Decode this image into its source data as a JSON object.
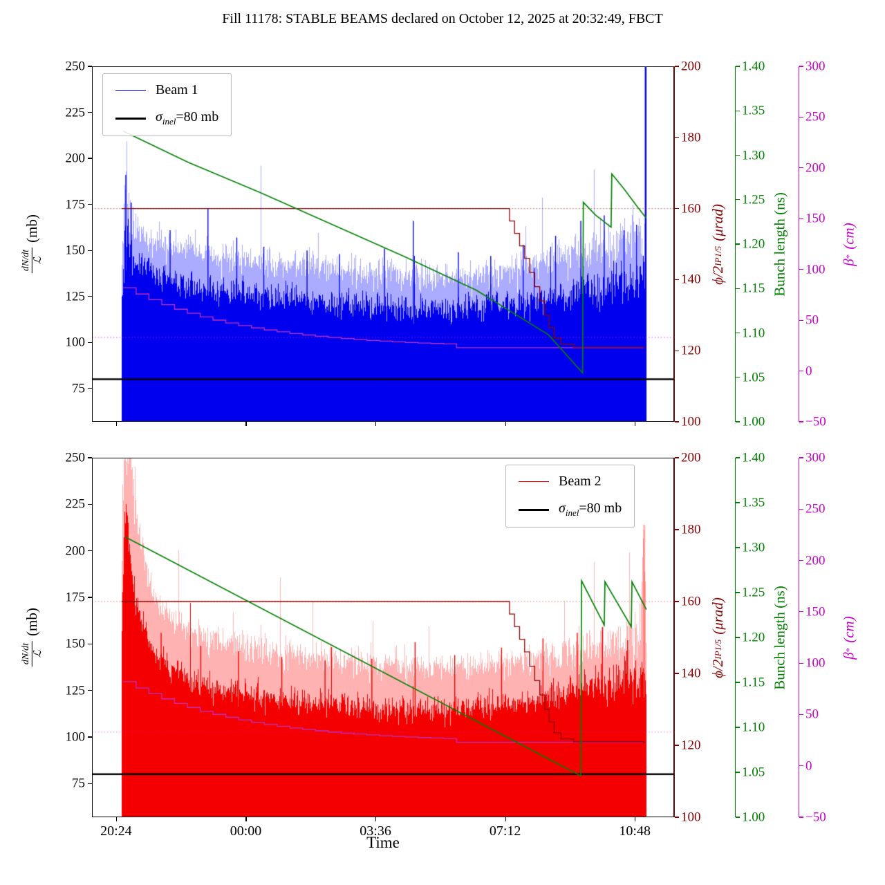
{
  "title": "Fill 11178: STABLE BEAMS declared on October 12, 2025 at 20:32:49, FBCT",
  "legend": {
    "beam1": "Beam 1",
    "beam2": "Beam 2",
    "sigma_prefix": "σ",
    "sigma_sub": "inel",
    "sigma_rest": "=80 mb"
  },
  "axes": {
    "x": {
      "label": "Time",
      "tick_labels": [
        "20:24",
        "00:00",
        "03:36",
        "07:12",
        "10:48"
      ],
      "tick_hours": [
        0,
        3.6,
        7.2,
        10.8,
        14.4
      ],
      "range_hours": [
        -0.67,
        15.49
      ]
    },
    "left": {
      "label_num": "dN/dt",
      "label_den": "ℒ",
      "label_unit": "(mb)",
      "tick_labels": [
        "75",
        "100",
        "125",
        "150",
        "175",
        "200",
        "225",
        "250"
      ],
      "tick_values": [
        75,
        100,
        125,
        150,
        175,
        200,
        225,
        250
      ],
      "range": [
        56.9,
        250
      ],
      "color": "#000000"
    },
    "phi": {
      "label_main": "ϕ/2",
      "label_sub": "IP1/5",
      "label_unit": "(μrad)",
      "tick_labels": [
        "100",
        "120",
        "140",
        "160",
        "180",
        "200"
      ],
      "tick_values": [
        100,
        120,
        140,
        160,
        180,
        200
      ],
      "range": [
        100,
        200
      ],
      "color": "#8b0000"
    },
    "bunch": {
      "label": "Bunch length (ns)",
      "tick_labels": [
        "1.00",
        "1.05",
        "1.10",
        "1.15",
        "1.20",
        "1.25",
        "1.30",
        "1.35",
        "1.40"
      ],
      "tick_values": [
        1.0,
        1.05,
        1.1,
        1.15,
        1.2,
        1.25,
        1.3,
        1.35,
        1.4
      ],
      "range": [
        1.0,
        1.4
      ],
      "color": "#008000"
    },
    "beta": {
      "label_main": "β",
      "label_sup": "*",
      "label_unit": "(cm)",
      "tick_labels": [
        "−50",
        "0",
        "50",
        "100",
        "150",
        "200",
        "250",
        "300"
      ],
      "tick_values": [
        -50,
        0,
        50,
        100,
        150,
        200,
        250,
        300
      ],
      "range": [
        -50,
        300
      ],
      "color": "#cc00cc"
    }
  },
  "chart_data": {
    "type": "line",
    "title": "Fill 11178: STABLE BEAMS declared on October 12, 2025 at 20:32:49, FBCT",
    "x_unit": "hours since 20:24",
    "subplots": [
      {
        "name": "Beam 1",
        "beam_color": "#0000ee",
        "beam_light_color": "rgba(0,0,255,0.33)",
        "seed": 11178,
        "data_t_range": [
          0.15,
          14.72
        ],
        "noise": {
          "light_amp": 10,
          "dark_amp": 9,
          "spike_prob": 0.012,
          "spike_max": 38
        },
        "envelope_light": [
          [
            0.15,
            128
          ],
          [
            0.22,
            165
          ],
          [
            0.3,
            193
          ],
          [
            0.38,
            170
          ],
          [
            0.5,
            163
          ],
          [
            0.8,
            158
          ],
          [
            1.2,
            155
          ],
          [
            2,
            151
          ],
          [
            3,
            147
          ],
          [
            4,
            144
          ],
          [
            5,
            142
          ],
          [
            6,
            140
          ],
          [
            7,
            138
          ],
          [
            8,
            137
          ],
          [
            9,
            136
          ],
          [
            10,
            137
          ],
          [
            11,
            139
          ],
          [
            12,
            144
          ],
          [
            13,
            151
          ],
          [
            13.8,
            155
          ],
          [
            14.4,
            158
          ],
          [
            14.72,
            150
          ]
        ],
        "envelope_dark": [
          [
            0.15,
            110
          ],
          [
            0.22,
            140
          ],
          [
            0.3,
            158
          ],
          [
            0.4,
            150
          ],
          [
            0.6,
            143
          ],
          [
            1,
            138
          ],
          [
            2,
            131
          ],
          [
            3,
            127
          ],
          [
            4,
            125
          ],
          [
            5,
            123
          ],
          [
            6,
            121
          ],
          [
            7,
            120
          ],
          [
            8,
            119
          ],
          [
            9,
            118
          ],
          [
            10,
            119
          ],
          [
            11,
            121
          ],
          [
            12,
            124
          ],
          [
            13,
            128
          ],
          [
            14,
            132
          ],
          [
            14.72,
            133
          ]
        ],
        "spikes_dark": [
          [
            0.27,
            191
          ],
          [
            0.42,
            176
          ],
          [
            1.5,
            161
          ],
          [
            2.55,
            173
          ],
          [
            3.35,
            157
          ],
          [
            4.1,
            152
          ],
          [
            5.3,
            150
          ],
          [
            6.2,
            148
          ],
          [
            7.45,
            151
          ],
          [
            8.25,
            166
          ],
          [
            9.5,
            149
          ],
          [
            10.4,
            147
          ],
          [
            11.3,
            153
          ],
          [
            12.2,
            158
          ],
          [
            12.9,
            166
          ],
          [
            13.55,
            169
          ],
          [
            14.1,
            161
          ],
          [
            14.45,
            164
          ]
        ],
        "end_spike": {
          "t": 14.7,
          "v": 250,
          "layer": "dark",
          "w": 2.5
        },
        "sigma_inel_mb": 80,
        "crossing_angle_urad": {
          "ref_dotted": 160,
          "steps": [
            [
              0.15,
              160
            ],
            [
              10.78,
              160
            ],
            [
              10.92,
              156.5
            ],
            [
              11.06,
              153
            ],
            [
              11.2,
              149.5
            ],
            [
              11.34,
              146
            ],
            [
              11.48,
              142
            ],
            [
              11.62,
              138
            ],
            [
              11.76,
              134
            ],
            [
              11.9,
              130
            ],
            [
              12.02,
              126.5
            ],
            [
              12.16,
              123.5
            ],
            [
              12.35,
              121.8
            ],
            [
              12.7,
              121
            ],
            [
              14.65,
              120.6
            ]
          ]
        },
        "bunch_length_ns": {
          "points": [
            [
              0.2,
              1.327
            ],
            [
              2,
              1.292
            ],
            [
              4,
              1.258
            ],
            [
              6,
              1.222
            ],
            [
              8,
              1.186
            ],
            [
              10,
              1.148
            ],
            [
              12,
              1.098
            ],
            [
              12.95,
              1.055
            ],
            [
              12.97,
              1.247
            ],
            [
              13.3,
              1.233
            ],
            [
              13.74,
              1.219
            ],
            [
              13.76,
              1.279
            ],
            [
              14.1,
              1.262
            ],
            [
              14.45,
              1.243
            ],
            [
              14.72,
              1.229
            ]
          ]
        },
        "beta_star_cm": {
          "ref_dotted": 33,
          "step_spec": {
            "t0": 0.2,
            "t_flat": 9.45,
            "t_end": 14.65,
            "v0": 82,
            "v_flat": 23,
            "n_steps": 26,
            "decay": 9
          }
        }
      },
      {
        "name": "Beam 2",
        "beam_color": "#f40000",
        "beam_light_color": "rgba(255,0,0,0.30)",
        "seed": 21178,
        "data_t_range": [
          0.15,
          14.72
        ],
        "noise": {
          "light_amp": 10,
          "dark_amp": 9,
          "spike_prob": 0.012,
          "spike_max": 36
        },
        "envelope_light": [
          [
            0.15,
            170
          ],
          [
            0.2,
            245
          ],
          [
            0.28,
            253
          ],
          [
            0.4,
            251
          ],
          [
            0.55,
            225
          ],
          [
            0.7,
            205
          ],
          [
            0.9,
            185
          ],
          [
            1.1,
            172
          ],
          [
            1.5,
            163
          ],
          [
            2,
            157
          ],
          [
            3,
            151
          ],
          [
            4,
            147
          ],
          [
            5,
            144
          ],
          [
            6,
            142
          ],
          [
            7,
            140
          ],
          [
            8,
            138
          ],
          [
            9,
            137
          ],
          [
            10,
            138
          ],
          [
            11,
            140
          ],
          [
            12,
            143
          ],
          [
            13,
            148
          ],
          [
            14,
            152
          ],
          [
            14.55,
            158
          ],
          [
            14.65,
            213
          ],
          [
            14.72,
            150
          ]
        ],
        "envelope_dark": [
          [
            0.15,
            135
          ],
          [
            0.22,
            213
          ],
          [
            0.3,
            216
          ],
          [
            0.4,
            196
          ],
          [
            0.55,
            175
          ],
          [
            0.75,
            158
          ],
          [
            1,
            147
          ],
          [
            1.5,
            138
          ],
          [
            2,
            131
          ],
          [
            3,
            126
          ],
          [
            4,
            122
          ],
          [
            5,
            120
          ],
          [
            6,
            118
          ],
          [
            7,
            116
          ],
          [
            8,
            115
          ],
          [
            9,
            115
          ],
          [
            10,
            116
          ],
          [
            11,
            118
          ],
          [
            12,
            121
          ],
          [
            13,
            126
          ],
          [
            14,
            130
          ],
          [
            14.72,
            133
          ]
        ],
        "spikes_dark": [
          [
            1.25,
            156
          ],
          [
            2.35,
            149
          ],
          [
            3.4,
            146
          ],
          [
            4.6,
            143
          ],
          [
            5.8,
            141
          ],
          [
            7.1,
            142
          ],
          [
            8.3,
            151
          ],
          [
            9.4,
            144
          ],
          [
            10.7,
            148
          ],
          [
            11.85,
            153
          ],
          [
            12.8,
            156
          ],
          [
            13.5,
            159
          ],
          [
            14.2,
            152
          ]
        ],
        "end_spike": {
          "t": 14.66,
          "v": 214,
          "layer": "light",
          "w": 3
        },
        "sigma_inel_mb": 80,
        "crossing_angle_urad": {
          "ref_dotted": 160,
          "steps": [
            [
              0.15,
              160
            ],
            [
              10.78,
              160
            ],
            [
              10.92,
              156.5
            ],
            [
              11.06,
              153
            ],
            [
              11.2,
              149.5
            ],
            [
              11.34,
              146
            ],
            [
              11.48,
              142
            ],
            [
              11.62,
              138
            ],
            [
              11.76,
              134
            ],
            [
              11.9,
              130
            ],
            [
              12.02,
              126.5
            ],
            [
              12.16,
              123.5
            ],
            [
              12.35,
              121.8
            ],
            [
              12.7,
              121
            ],
            [
              14.65,
              120.6
            ]
          ]
        },
        "bunch_length_ns": {
          "points": [
            [
              0.25,
              1.312
            ],
            [
              12.9,
              1.046
            ],
            [
              12.92,
              1.263
            ],
            [
              13.55,
              1.214
            ],
            [
              13.57,
              1.262
            ],
            [
              14.3,
              1.212
            ],
            [
              14.32,
              1.262
            ],
            [
              14.72,
              1.231
            ]
          ]
        },
        "beta_star_cm": {
          "ref_dotted": 33,
          "step_spec": {
            "t0": 0.2,
            "t_flat": 9.45,
            "t_end": 14.65,
            "v0": 82,
            "v_flat": 23,
            "n_steps": 26,
            "decay": 9
          }
        }
      }
    ]
  }
}
